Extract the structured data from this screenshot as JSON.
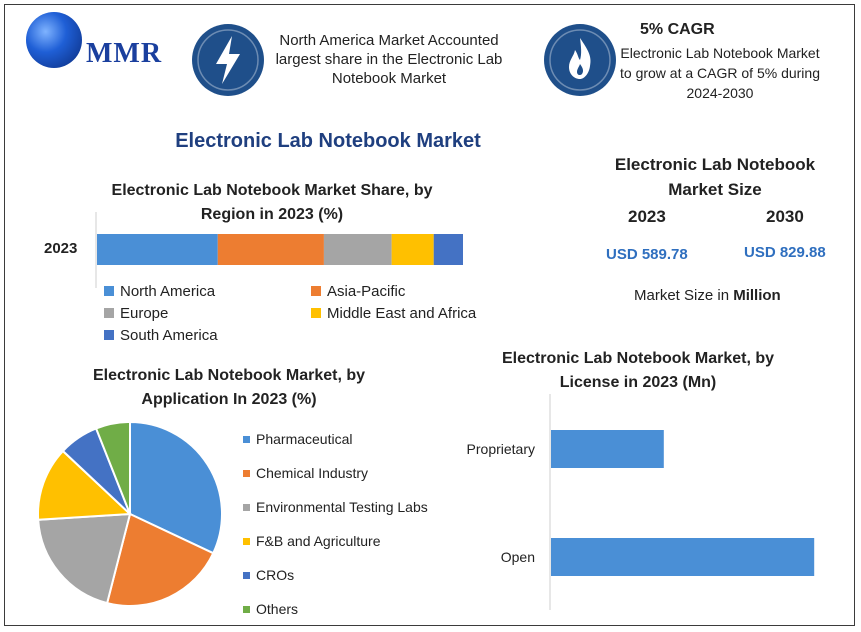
{
  "logo": {
    "text": "MMR"
  },
  "header": {
    "left_text": "North America Market Accounted largest share in the Electronic Lab Notebook Market",
    "cagr_title": "5% CAGR",
    "cagr_text": "Electronic Lab Notebook Market to grow at a CAGR of 5% during 2024-2030",
    "bolt_icon": "lightning-icon",
    "flame_icon": "flame-icon",
    "badge_color": "#1f4f8a"
  },
  "main_title": "Electronic Lab Notebook Market",
  "market_size": {
    "title": "Electronic Lab Notebook Market Size",
    "year1": "2023",
    "year2": "2030",
    "value1": "USD 589.78",
    "value2": "USD 829.88",
    "unit_prefix": "Market Size in ",
    "unit_bold": "Million"
  },
  "chart_data": [
    {
      "type": "bar",
      "orientation": "horizontal-stacked",
      "title": "Electronic Lab Notebook Market Share, by Region in 2023 (%)",
      "categories": [
        "2023"
      ],
      "series": [
        {
          "name": "North America",
          "values": [
            33
          ],
          "color": "#4a8fd6"
        },
        {
          "name": "Asia-Pacific",
          "values": [
            29
          ],
          "color": "#ed7d31"
        },
        {
          "name": "Europe",
          "values": [
            18.5
          ],
          "color": "#a5a5a5"
        },
        {
          "name": "Middle East and Africa",
          "values": [
            11.5
          ],
          "color": "#ffc000"
        },
        {
          "name": "South America",
          "values": [
            8
          ],
          "color": "#4472c4"
        }
      ],
      "xlim": [
        0,
        100
      ],
      "legend_position": "bottom"
    },
    {
      "type": "pie",
      "title": "Electronic Lab Notebook Market, by Application In 2023 (%)",
      "slices": [
        {
          "name": "Pharmaceutical",
          "value": 32,
          "color": "#4a8fd6"
        },
        {
          "name": "Chemical Industry",
          "value": 22,
          "color": "#ed7d31"
        },
        {
          "name": "Environmental Testing Labs",
          "value": 20,
          "color": "#a5a5a5"
        },
        {
          "name": "F&B and Agriculture",
          "value": 13,
          "color": "#ffc000"
        },
        {
          "name": "CROs",
          "value": 7,
          "color": "#4472c4"
        },
        {
          "name": "Others",
          "value": 6,
          "color": "#70ad47"
        }
      ],
      "legend_position": "right"
    },
    {
      "type": "bar",
      "orientation": "horizontal",
      "title": "Electronic Lab Notebook Market, by License in 2023 (Mn)",
      "categories": [
        "Proprietary",
        "Open"
      ],
      "values": [
        180,
        420
      ],
      "color": "#4a8fd6",
      "xlim": [
        0,
        450
      ],
      "grid": false
    }
  ]
}
